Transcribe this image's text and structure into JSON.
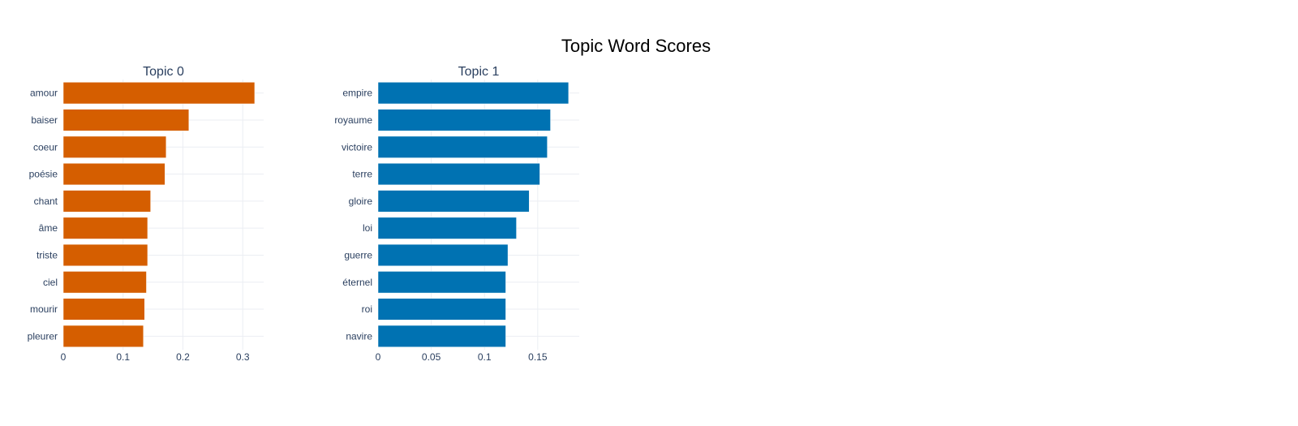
{
  "chart_data": {
    "type": "bar",
    "title": "Topic Word Scores",
    "orientation": "horizontal",
    "grid": true,
    "subplots": [
      {
        "title": "Topic 0",
        "color": "#D55E00",
        "categories": [
          "amour",
          "baiser",
          "coeur",
          "poésie",
          "chant",
          "âme",
          "triste",
          "ciel",
          "mourir",
          "pleurer"
        ],
        "values": [
          0.32,
          0.21,
          0.172,
          0.17,
          0.146,
          0.141,
          0.141,
          0.139,
          0.136,
          0.134
        ],
        "xlim": [
          0,
          0.335
        ],
        "xticks": [
          0,
          0.1,
          0.2,
          0.3
        ],
        "xtick_labels": [
          "0",
          "0.1",
          "0.2",
          "0.3"
        ]
      },
      {
        "title": "Topic 1",
        "color": "#0072B2",
        "categories": [
          "empire",
          "royaume",
          "victoire",
          "terre",
          "gloire",
          "loi",
          "guerre",
          "éternel",
          "roi",
          "navire"
        ],
        "values": [
          0.179,
          0.162,
          0.159,
          0.152,
          0.142,
          0.13,
          0.122,
          0.12,
          0.12,
          0.12
        ],
        "xlim": [
          0,
          0.189
        ],
        "xticks": [
          0,
          0.05,
          0.1,
          0.15
        ],
        "xtick_labels": [
          "0",
          "0.05",
          "0.1",
          "0.15"
        ]
      }
    ]
  }
}
